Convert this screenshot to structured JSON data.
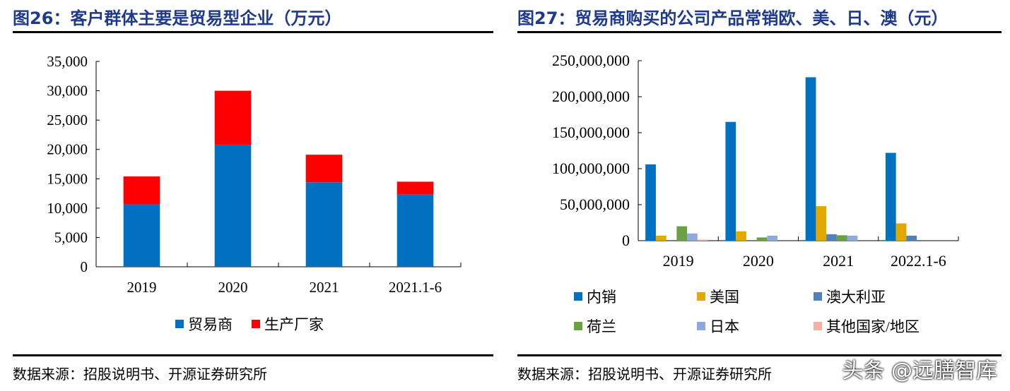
{
  "chart_data": [
    {
      "type": "bar",
      "stacked": true,
      "title": "图26：客户群体主要是贸易型企业（万元）",
      "categories": [
        "2019",
        "2020",
        "2021",
        "2021.1-6"
      ],
      "ylim": [
        0,
        35000
      ],
      "yticks": [
        "0",
        "5,000",
        "10,000",
        "15,000",
        "20,000",
        "25,000",
        "30,000",
        "35,000"
      ],
      "legend_position": "bottom",
      "grid": false,
      "series": [
        {
          "name": "贸易商",
          "color": "#0070C0",
          "values": [
            10700,
            20800,
            14400,
            12300
          ]
        },
        {
          "name": "生产厂家",
          "color": "#FF0000",
          "values": [
            4700,
            9200,
            4700,
            2200
          ]
        }
      ],
      "source": "数据来源：招股说明书、开源证券研究所"
    },
    {
      "type": "bar",
      "stacked": false,
      "title": "图27：贸易商购买的公司产品常销欧、美、日、澳（元）",
      "categories": [
        "2019",
        "2020",
        "2021",
        "2022.1-6"
      ],
      "ylim": [
        0,
        250000000
      ],
      "yticks": [
        "0",
        "50,000,000",
        "100,000,000",
        "150,000,000",
        "200,000,000",
        "250,000,000"
      ],
      "legend_position": "bottom",
      "grid": false,
      "series": [
        {
          "name": "内销",
          "color": "#0070C0",
          "values": [
            106000000,
            165000000,
            227000000,
            122000000
          ]
        },
        {
          "name": "美国",
          "color": "#E3A800",
          "values": [
            7000000,
            13000000,
            48000000,
            24000000
          ]
        },
        {
          "name": "澳大利亚",
          "color": "#4F81BD",
          "values": [
            0,
            0,
            9000000,
            7000000
          ]
        },
        {
          "name": "荷兰",
          "color": "#6AA142",
          "values": [
            20000000,
            4500000,
            7500000,
            0
          ]
        },
        {
          "name": "日本",
          "color": "#8EA9DB",
          "values": [
            10000000,
            7000000,
            7000000,
            0
          ]
        },
        {
          "name": "其他国家/地区",
          "color": "#F4B0A0",
          "values": [
            1500000,
            0,
            0,
            0
          ]
        }
      ],
      "source": "数据来源：招股说明书、开源证券研究所"
    }
  ],
  "watermark": "头条 @远膳智库"
}
